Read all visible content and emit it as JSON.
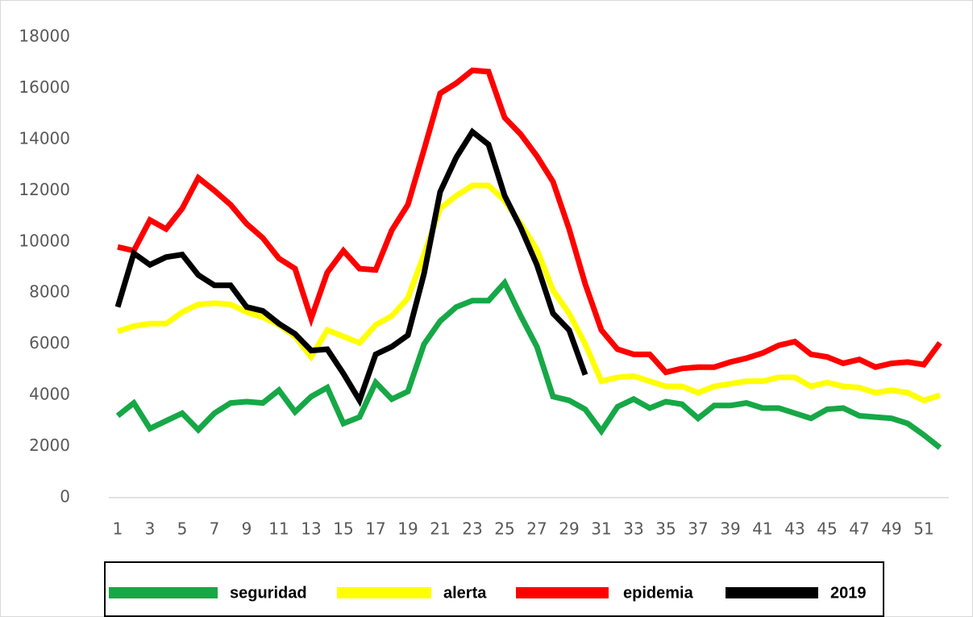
{
  "chart_data": {
    "type": "line",
    "categories": [
      1,
      null,
      3,
      null,
      5,
      null,
      7,
      null,
      9,
      null,
      11,
      null,
      13,
      null,
      15,
      null,
      17,
      null,
      19,
      null,
      21,
      null,
      23,
      null,
      25,
      null,
      27,
      null,
      29,
      null,
      31,
      null,
      33,
      null,
      35,
      null,
      37,
      null,
      39,
      null,
      41,
      null,
      43,
      null,
      45,
      null,
      47,
      null,
      49,
      null,
      51,
      null
    ],
    "ylim": [
      0,
      18000
    ],
    "yticks": [
      0,
      2000,
      4000,
      6000,
      8000,
      10000,
      12000,
      14000,
      16000,
      18000
    ],
    "grid": false,
    "series": [
      {
        "name": "seguridad",
        "color": "#16a846",
        "values": [
          3200,
          3700,
          2700,
          3000,
          3300,
          2650,
          3300,
          3700,
          3750,
          3700,
          4200,
          3350,
          3950,
          4300,
          2900,
          3150,
          4500,
          3850,
          4150,
          6000,
          6900,
          7450,
          7700,
          7700,
          8400,
          7100,
          5900,
          3950,
          3800,
          3450,
          2600,
          3550,
          3850,
          3500,
          3750,
          3650,
          3100,
          3600,
          3600,
          3700,
          3500,
          3500,
          3300,
          3100,
          3450,
          3500,
          3200,
          3150,
          3100,
          2900,
          2450,
          1950
        ]
      },
      {
        "name": "alerta",
        "color": "#ffff00",
        "values": [
          6500,
          6700,
          6800,
          6800,
          7250,
          7550,
          7600,
          7550,
          7250,
          7050,
          6750,
          6300,
          5500,
          6550,
          6300,
          6050,
          6750,
          7100,
          7800,
          9500,
          11300,
          11800,
          12200,
          12200,
          11600,
          10700,
          9700,
          8100,
          7200,
          6000,
          4550,
          4700,
          4750,
          4550,
          4350,
          4350,
          4100,
          4350,
          4450,
          4550,
          4550,
          4700,
          4700,
          4350,
          4500,
          4350,
          4300,
          4100,
          4200,
          4100,
          3800,
          4000
        ]
      },
      {
        "name": "epidemia",
        "color": "#ff0000",
        "values": [
          9800,
          9650,
          10850,
          10500,
          11300,
          12500,
          12000,
          11450,
          10700,
          10150,
          9350,
          8950,
          7000,
          8800,
          9650,
          8950,
          8900,
          10450,
          11450,
          13600,
          15800,
          16200,
          16700,
          16650,
          14850,
          14200,
          13350,
          12350,
          10500,
          8350,
          6550,
          5800,
          5600,
          5600,
          4900,
          5050,
          5100,
          5100,
          5300,
          5450,
          5650,
          5950,
          6100,
          5600,
          5500,
          5250,
          5400,
          5100,
          5250,
          5300,
          5200,
          6050
        ]
      },
      {
        "name": "2019",
        "color": "#000000",
        "values": [
          7450,
          9550,
          9100,
          9400,
          9500,
          8700,
          8300,
          8300,
          7450,
          7300,
          6800,
          6400,
          5750,
          5800,
          4850,
          3800,
          5600,
          5900,
          6350,
          8750,
          11950,
          13300,
          14300,
          13800,
          11800,
          10550,
          9100,
          7200,
          6550,
          4800,
          null,
          null,
          null,
          null,
          null,
          null,
          null,
          null,
          null,
          null,
          null,
          null,
          null,
          null,
          null,
          null,
          null,
          null,
          null,
          null,
          null,
          null
        ]
      }
    ]
  }
}
